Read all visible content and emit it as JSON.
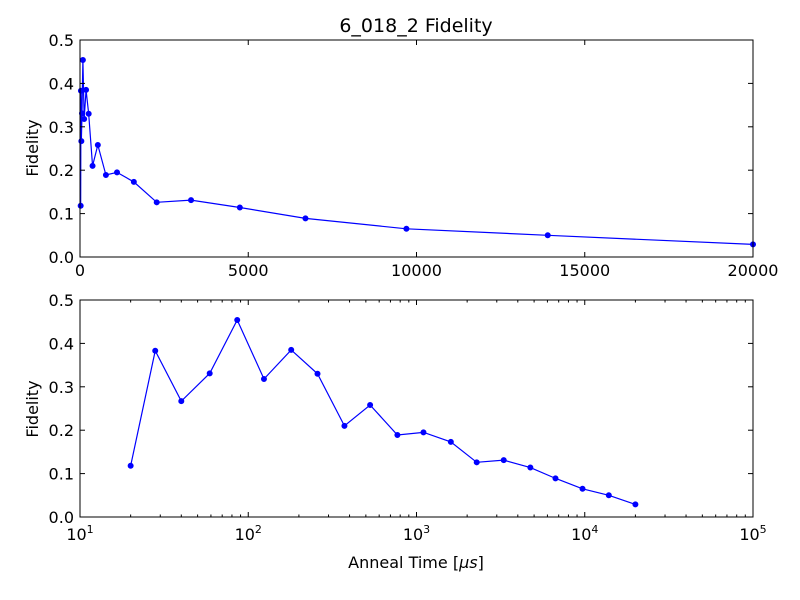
{
  "chart_data": [
    {
      "type": "line",
      "title": "6_018_2 Fidelity",
      "xlabel": "",
      "ylabel": "Fidelity",
      "xscale": "linear",
      "xlim": [
        0,
        20000
      ],
      "ylim": [
        0,
        0.5
      ],
      "xticks": [
        0,
        5000,
        10000,
        15000,
        20000
      ],
      "xtick_labels": [
        "0",
        "5000",
        "10000",
        "15000",
        "20000"
      ],
      "yticks": [
        0,
        0.1,
        0.2,
        0.3,
        0.4,
        0.5
      ],
      "ytick_labels": [
        "0.0",
        "0.1",
        "0.2",
        "0.3",
        "0.4",
        "0.5"
      ],
      "grid": false,
      "color": "#0000ff",
      "series": [
        {
          "x": [
            20,
            28,
            40,
            59,
            86,
            124,
            180,
            258,
            373,
            530,
            770,
            1100,
            1600,
            2280,
            3300,
            4750,
            6700,
            9700,
            13900,
            20000
          ],
          "y": [
            0.118,
            0.383,
            0.267,
            0.331,
            0.454,
            0.318,
            0.385,
            0.33,
            0.21,
            0.258,
            0.189,
            0.195,
            0.173,
            0.126,
            0.131,
            0.114,
            0.089,
            0.065,
            0.05,
            0.029
          ]
        }
      ]
    },
    {
      "type": "line",
      "title": "",
      "xlabel": "Anneal Time [μs]",
      "xlabel_main": "Anneal Time [",
      "xlabel_unit": "μs",
      "xlabel_close": "]",
      "ylabel": "Fidelity",
      "xscale": "log",
      "xlim": [
        10,
        100000
      ],
      "ylim": [
        0,
        0.5
      ],
      "xticks": [
        10,
        100,
        1000,
        10000,
        100000
      ],
      "xtick_bases": [
        "10",
        "10",
        "10",
        "10",
        "10"
      ],
      "xtick_exps": [
        "1",
        "2",
        "3",
        "4",
        "5"
      ],
      "yticks": [
        0,
        0.1,
        0.2,
        0.3,
        0.4,
        0.5
      ],
      "ytick_labels": [
        "0.0",
        "0.1",
        "0.2",
        "0.3",
        "0.4",
        "0.5"
      ],
      "grid": false,
      "color": "#0000ff",
      "series": [
        {
          "x": [
            20,
            28,
            40,
            59,
            86,
            124,
            180,
            258,
            373,
            530,
            770,
            1100,
            1600,
            2280,
            3300,
            4750,
            6700,
            9700,
            13900,
            20000
          ],
          "y": [
            0.118,
            0.383,
            0.267,
            0.331,
            0.454,
            0.318,
            0.385,
            0.33,
            0.21,
            0.258,
            0.189,
            0.195,
            0.173,
            0.126,
            0.131,
            0.114,
            0.089,
            0.065,
            0.05,
            0.029
          ]
        }
      ]
    }
  ]
}
